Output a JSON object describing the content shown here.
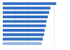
{
  "chart_data": {
    "type": "bar",
    "orientation": "horizontal",
    "categories": [
      null,
      null,
      null,
      null,
      null,
      null,
      null,
      null,
      null,
      null
    ],
    "values": [
      83,
      74,
      72,
      70,
      68,
      67,
      65,
      64,
      62,
      60
    ],
    "colors": [
      "#2f6fc4",
      "#2f6fc4",
      "#2f6fc4",
      "#2f6fc4",
      "#2f6fc4",
      "#2f6fc4",
      "#2f6fc4",
      "#2f6fc4",
      "#2f6fc4",
      "#8fb3e3"
    ],
    "xlim": [
      0,
      100
    ],
    "xticks": [
      0,
      20,
      40,
      60,
      80,
      100
    ],
    "grid": true,
    "tick_labels": false
  }
}
